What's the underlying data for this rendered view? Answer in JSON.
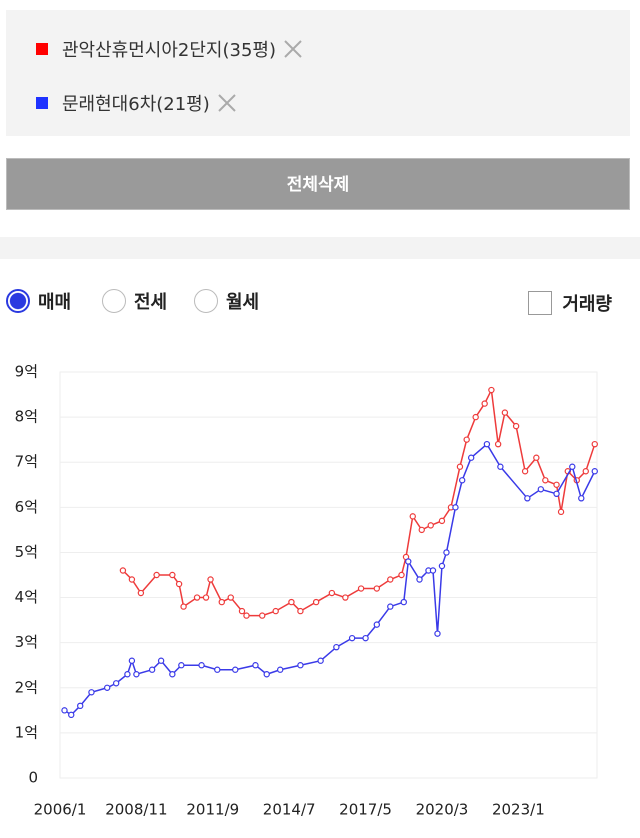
{
  "filters": [
    {
      "label": "관악산휴먼시아2단지(35평)",
      "color": "#ff0000"
    },
    {
      "label": "문래현대6차(21평)",
      "color": "#1e32ff"
    }
  ],
  "clear_button": "전체삭제",
  "tabs": [
    "매매",
    "전세",
    "월세"
  ],
  "volume_toggle": "거래량",
  "chart_data": {
    "type": "line",
    "xlim": [
      "2006/1",
      "2025/12"
    ],
    "xticks": [
      "2006/1",
      "2008/11",
      "2011/9",
      "2014/7",
      "2017/5",
      "2020/3",
      "2023/1"
    ],
    "ylim": [
      0,
      9
    ],
    "yticks": [
      0,
      {
        "value": 1,
        "label": "1억"
      },
      {
        "value": 2,
        "label": "2억"
      },
      {
        "value": 3,
        "label": "3억"
      },
      {
        "value": 4,
        "label": "4억"
      },
      {
        "value": 5,
        "label": "5억"
      },
      {
        "value": 6,
        "label": "6억"
      },
      {
        "value": 7,
        "label": "7억"
      },
      {
        "value": 8,
        "label": "8억"
      },
      {
        "value": 9,
        "label": "9억"
      }
    ],
    "grid": true,
    "series": [
      {
        "name": "관악산휴먼시아2단지(35평)",
        "color": "#ee3b3b",
        "x": [
          "2008/5",
          "2008/9",
          "2009/1",
          "2009/8",
          "2010/3",
          "2010/6",
          "2010/8",
          "2011/2",
          "2011/6",
          "2011/8",
          "2012/1",
          "2012/5",
          "2012/10",
          "2012/12",
          "2013/7",
          "2014/1",
          "2014/8",
          "2014/12",
          "2015/7",
          "2016/2",
          "2016/8",
          "2017/3",
          "2017/10",
          "2018/4",
          "2018/9",
          "2018/11",
          "2019/2",
          "2019/6",
          "2019/10",
          "2020/3",
          "2020/7",
          "2020/11",
          "2021/2",
          "2021/6",
          "2021/10",
          "2022/1",
          "2022/4",
          "2022/7",
          "2022/12",
          "2023/4",
          "2023/9",
          "2024/1",
          "2024/6",
          "2024/8",
          "2024/11",
          "2025/3",
          "2025/7",
          "2025/11"
        ],
        "values": [
          4.6,
          4.4,
          4.1,
          4.5,
          4.5,
          4.3,
          3.8,
          4.0,
          4.0,
          4.4,
          3.9,
          4.0,
          3.7,
          3.6,
          3.6,
          3.7,
          3.9,
          3.7,
          3.9,
          4.1,
          4.0,
          4.2,
          4.2,
          4.4,
          4.5,
          4.9,
          5.8,
          5.5,
          5.6,
          5.7,
          6.0,
          6.9,
          7.5,
          8.0,
          8.3,
          8.6,
          7.4,
          8.1,
          7.8,
          6.8,
          7.1,
          6.6,
          6.5,
          5.9,
          6.8,
          6.6,
          6.8,
          7.4
        ]
      },
      {
        "name": "문래현대6차(21평)",
        "color": "#3a3ae8",
        "x": [
          "2006/3",
          "2006/6",
          "2006/10",
          "2007/3",
          "2007/10",
          "2008/2",
          "2008/7",
          "2008/9",
          "2008/11",
          "2009/6",
          "2009/10",
          "2010/3",
          "2010/7",
          "2011/4",
          "2011/11",
          "2012/7",
          "2013/4",
          "2013/9",
          "2014/3",
          "2014/12",
          "2015/9",
          "2016/4",
          "2016/11",
          "2017/5",
          "2017/10",
          "2018/4",
          "2018/10",
          "2018/12",
          "2019/5",
          "2019/9",
          "2019/11",
          "2020/1",
          "2020/3",
          "2020/5",
          "2020/9",
          "2020/12",
          "2021/4",
          "2021/11",
          "2022/5",
          "2023/5",
          "2023/11",
          "2024/6",
          "2025/1",
          "2025/5",
          "2025/11"
        ],
        "values": [
          1.5,
          1.4,
          1.6,
          1.9,
          2.0,
          2.1,
          2.3,
          2.6,
          2.3,
          2.4,
          2.6,
          2.3,
          2.5,
          2.5,
          2.4,
          2.4,
          2.5,
          2.3,
          2.4,
          2.5,
          2.6,
          2.9,
          3.1,
          3.1,
          3.4,
          3.8,
          3.9,
          4.8,
          4.4,
          4.6,
          4.6,
          3.2,
          4.7,
          5.0,
          6.0,
          6.6,
          7.1,
          7.4,
          6.9,
          6.2,
          6.4,
          6.3,
          6.9,
          6.2,
          6.8
        ]
      }
    ]
  }
}
